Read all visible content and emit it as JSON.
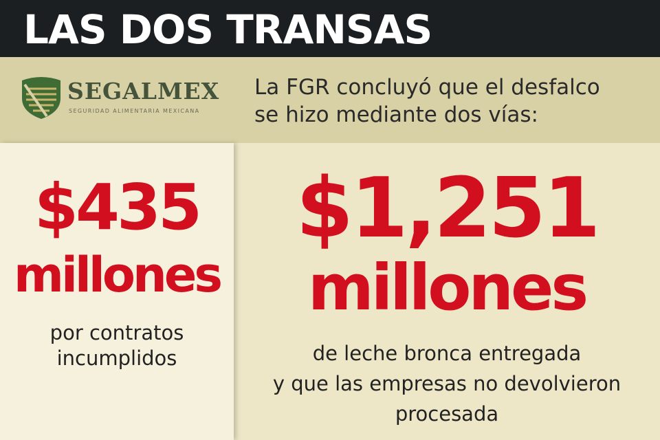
{
  "header": {
    "title": "LAS DOS TRANSAS"
  },
  "logo": {
    "name": "SEGALMEX",
    "tagline": "SEGURIDAD ALIMENTARIA MEXICANA"
  },
  "intro": {
    "lines": [
      "La FGR concluyó que el desfalco",
      "se hizo mediante dos vías:"
    ]
  },
  "panels": [
    {
      "amount": "$435",
      "unit": "millones",
      "description": [
        "por contratos",
        "incumplidos"
      ]
    },
    {
      "amount": "$1,251",
      "unit": "millones",
      "description": [
        "de leche bronca entregada",
        "y que las empresas no devolvieron",
        "procesada"
      ]
    }
  ]
}
